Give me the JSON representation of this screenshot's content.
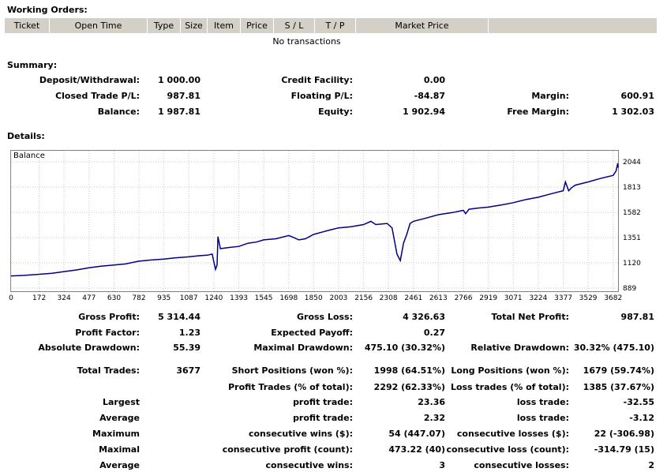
{
  "working_orders": {
    "title": "Working Orders:",
    "columns": [
      "Ticket",
      "Open Time",
      "Type",
      "Size",
      "Item",
      "Price",
      "S / L",
      "T / P",
      "Market Price"
    ],
    "empty_text": "No transactions"
  },
  "summary": {
    "title": "Summary:",
    "deposit_label": "Deposit/Withdrawal:",
    "deposit_value": "1 000.00",
    "credit_label": "Credit Facility:",
    "credit_value": "0.00",
    "closed_pl_label": "Closed Trade P/L:",
    "closed_pl_value": "987.81",
    "floating_label": "Floating P/L:",
    "floating_value": "-84.87",
    "margin_label": "Margin:",
    "margin_value": "600.91",
    "balance_label": "Balance:",
    "balance_value": "1 987.81",
    "equity_label": "Equity:",
    "equity_value": "1 902.94",
    "free_margin_label": "Free Margin:",
    "free_margin_value": "1 302.03"
  },
  "details": {
    "title": "Details:"
  },
  "chart_data": {
    "type": "line",
    "title": "Balance",
    "series": [
      {
        "x": [
          0,
          80,
          172,
          250,
          324,
          400,
          477,
          550,
          630,
          700,
          782,
          850,
          935,
          1000,
          1087,
          1150,
          1200,
          1230,
          1240,
          1250,
          1260,
          1265,
          1280,
          1330,
          1393,
          1450,
          1500,
          1545,
          1620,
          1698,
          1730,
          1760,
          1800,
          1850,
          1900,
          1950,
          2003,
          2080,
          2156,
          2200,
          2230,
          2300,
          2330,
          2360,
          2380,
          2400,
          2420,
          2440,
          2461,
          2540,
          2613,
          2700,
          2766,
          2780,
          2800,
          2850,
          2919,
          3000,
          3071,
          3150,
          3224,
          3300,
          3377,
          3390,
          3410,
          3430,
          3450,
          3529,
          3600,
          3682,
          3700,
          3710,
          3712
        ],
        "y": [
          1000,
          1005,
          1015,
          1025,
          1040,
          1055,
          1075,
          1090,
          1100,
          1110,
          1135,
          1145,
          1155,
          1165,
          1175,
          1185,
          1190,
          1200,
          1130,
          1060,
          1100,
          1360,
          1250,
          1260,
          1270,
          1300,
          1310,
          1330,
          1340,
          1370,
          1350,
          1330,
          1340,
          1380,
          1400,
          1420,
          1440,
          1450,
          1470,
          1500,
          1470,
          1480,
          1440,
          1200,
          1140,
          1300,
          1380,
          1480,
          1500,
          1530,
          1560,
          1580,
          1600,
          1570,
          1610,
          1620,
          1630,
          1650,
          1670,
          1700,
          1720,
          1750,
          1780,
          1860,
          1780,
          1810,
          1830,
          1860,
          1890,
          1920,
          1960,
          2030,
          1990
        ]
      }
    ],
    "x_ticks": [
      0,
      172,
      324,
      477,
      630,
      782,
      935,
      1087,
      1240,
      1393,
      1545,
      1698,
      1850,
      2003,
      2156,
      2308,
      2461,
      2613,
      2766,
      2919,
      3071,
      3224,
      3377,
      3529,
      3682
    ],
    "y_ticks": [
      889,
      1120,
      1351,
      1582,
      1813,
      2044
    ],
    "xlim": [
      0,
      3712
    ],
    "ylim": [
      889,
      2044
    ],
    "line_color": "#000080",
    "grid": true
  },
  "stats": {
    "gross_profit_label": "Gross Profit:",
    "gross_profit_value": "5 314.44",
    "gross_loss_label": "Gross Loss:",
    "gross_loss_value": "4 326.63",
    "total_net_label": "Total Net Profit:",
    "total_net_value": "987.81",
    "profit_factor_label": "Profit Factor:",
    "profit_factor_value": "1.23",
    "expected_payoff_label": "Expected Payoff:",
    "expected_payoff_value": "0.27",
    "abs_dd_label": "Absolute Drawdown:",
    "abs_dd_value": "55.39",
    "max_dd_label": "Maximal Drawdown:",
    "max_dd_value": "475.10 (30.32%)",
    "rel_dd_label": "Relative Drawdown:",
    "rel_dd_value": "30.32% (475.10)",
    "total_trades_label": "Total Trades:",
    "total_trades_value": "3677",
    "short_label": "Short Positions (won %):",
    "short_value": "1998 (64.51%)",
    "long_label": "Long Positions (won %):",
    "long_value": "1679 (59.74%)",
    "profit_trades_label": "Profit Trades (% of total):",
    "profit_trades_value": "2292 (62.33%)",
    "loss_trades_label": "Loss trades (% of total):",
    "loss_trades_value": "1385 (37.67%)",
    "largest_label": "Largest",
    "largest_profit_label": "profit trade:",
    "largest_profit_value": "23.36",
    "largest_loss_label": "loss trade:",
    "largest_loss_value": "-32.55",
    "average_label": "Average",
    "average_profit_label": "profit trade:",
    "average_profit_value": "2.32",
    "average_loss_label": "loss trade:",
    "average_loss_value": "-3.12",
    "maximum_label": "Maximum",
    "max_cons_wins_label": "consecutive wins ($):",
    "max_cons_wins_value": "54 (447.07)",
    "max_cons_losses_label": "consecutive losses ($):",
    "max_cons_losses_value": "22 (-306.98)",
    "maximal_label": "Maximal",
    "maximal_cons_profit_label": "consecutive profit (count):",
    "maximal_cons_profit_value": "473.22 (40)",
    "maximal_cons_loss_label": "consecutive loss (count):",
    "maximal_cons_loss_value": "-314.79 (15)",
    "avg_label": "Average",
    "avg_cons_wins_label": "consecutive wins:",
    "avg_cons_wins_value": "3",
    "avg_cons_losses_label": "consecutive losses:",
    "avg_cons_losses_value": "2"
  }
}
